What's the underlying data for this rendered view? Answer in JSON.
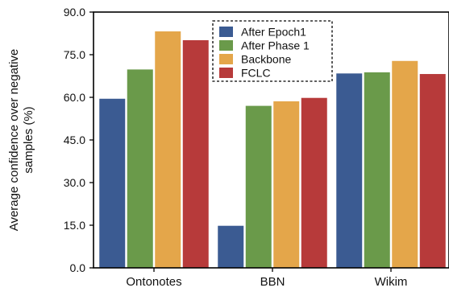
{
  "chart_data": {
    "type": "bar",
    "title": "",
    "xlabel": "",
    "ylabel_lines": [
      "Average confidence over negative",
      "samples (%)"
    ],
    "categories": [
      "Ontonotes",
      "BBN",
      "Wikim"
    ],
    "ylim": [
      0,
      90
    ],
    "yticks": [
      "0.0",
      "15.0",
      "30.0",
      "45.0",
      "60.0",
      "75.0",
      "90.0"
    ],
    "grid": false,
    "legend_position": "top-center",
    "series": [
      {
        "name": "After Epoch1",
        "color": "#3b5b92",
        "values": [
          59.5,
          14.8,
          68.4
        ]
      },
      {
        "name": "After Phase 1",
        "color": "#6a9a4a",
        "values": [
          69.8,
          57.0,
          68.8
        ]
      },
      {
        "name": "Backbone",
        "color": "#e4a64a",
        "values": [
          83.2,
          58.6,
          72.8
        ]
      },
      {
        "name": "FCLC",
        "color": "#b73a3a",
        "values": [
          80.1,
          59.8,
          68.2
        ]
      }
    ]
  }
}
